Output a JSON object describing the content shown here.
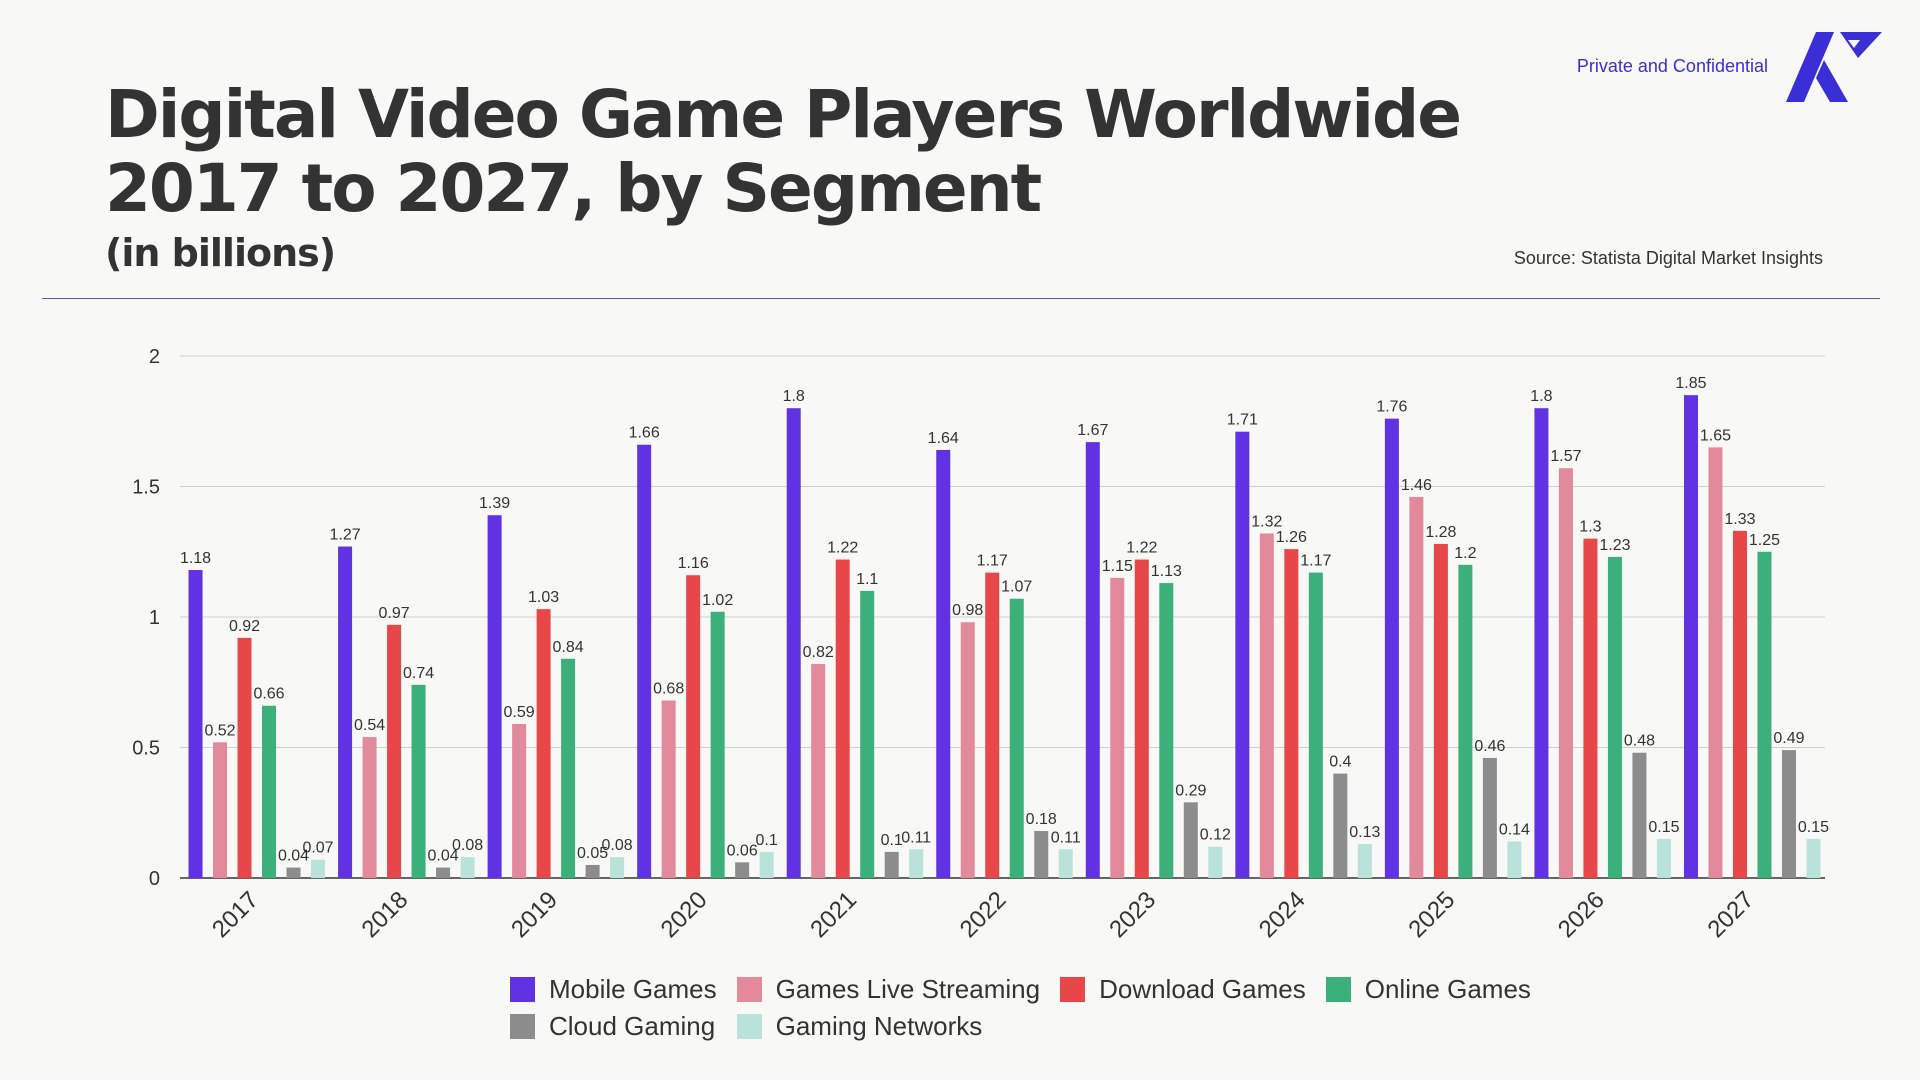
{
  "header": {
    "title_line1": "Digital Video Game Players Worldwide",
    "title_line2": "2017 to 2027, by Segment",
    "subtitle": "(in billions)",
    "confidential": "Private and Confidential",
    "source": "Source: Statista Digital Market Insights"
  },
  "colors": {
    "Mobile Games": "#6132e4",
    "Games Live Streaming": "#e28a9b",
    "Download Games": "#e8474a",
    "Online Games": "#3bb07a",
    "Cloud Gaming": "#8c8c8c",
    "Gaming Networks": "#b8e2da",
    "accent": "#3a2fd6"
  },
  "legend": [
    {
      "label": "Mobile Games",
      "color": "#6132e4"
    },
    {
      "label": "Games Live Streaming",
      "color": "#e28a9b"
    },
    {
      "label": "Download Games",
      "color": "#e8474a"
    },
    {
      "label": "Online Games",
      "color": "#3bb07a"
    },
    {
      "label": "Cloud Gaming",
      "color": "#8c8c8c"
    },
    {
      "label": "Gaming Networks",
      "color": "#b8e2da"
    }
  ],
  "chart_data": {
    "type": "bar",
    "title": "Digital Video Game Players Worldwide 2017 to 2027, by Segment",
    "subtitle": "(in billions)",
    "xlabel": "",
    "ylabel": "",
    "ylim": [
      0,
      2
    ],
    "yticks": [
      0,
      0.5,
      1,
      1.5,
      2
    ],
    "ytick_labels": [
      "0",
      "0.5",
      "1",
      "1.5",
      "2"
    ],
    "grid": true,
    "legend_position": "bottom",
    "categories": [
      "2017",
      "2018",
      "2019",
      "2020",
      "2021",
      "2022",
      "2023",
      "2024",
      "2025",
      "2026",
      "2027"
    ],
    "series": [
      {
        "name": "Mobile Games",
        "values": [
          1.18,
          1.27,
          1.39,
          1.66,
          1.8,
          1.64,
          1.67,
          1.71,
          1.76,
          1.8,
          1.85
        ]
      },
      {
        "name": "Games Live Streaming",
        "values": [
          0.52,
          0.54,
          0.59,
          0.68,
          0.82,
          0.98,
          1.15,
          1.32,
          1.46,
          1.57,
          1.65
        ]
      },
      {
        "name": "Download Games",
        "values": [
          0.92,
          0.97,
          1.03,
          1.16,
          1.22,
          1.17,
          1.22,
          1.26,
          1.28,
          1.3,
          1.33
        ]
      },
      {
        "name": "Online Games",
        "values": [
          0.66,
          0.74,
          0.84,
          1.02,
          1.1,
          1.07,
          1.13,
          1.17,
          1.2,
          1.23,
          1.25
        ]
      },
      {
        "name": "Cloud Gaming",
        "values": [
          0.04,
          0.04,
          0.05,
          0.06,
          0.1,
          0.18,
          0.29,
          0.4,
          0.46,
          0.48,
          0.49
        ]
      },
      {
        "name": "Gaming Networks",
        "values": [
          0.07,
          0.08,
          0.08,
          0.1,
          0.11,
          0.11,
          0.12,
          0.13,
          0.14,
          0.15,
          0.15
        ]
      }
    ]
  }
}
